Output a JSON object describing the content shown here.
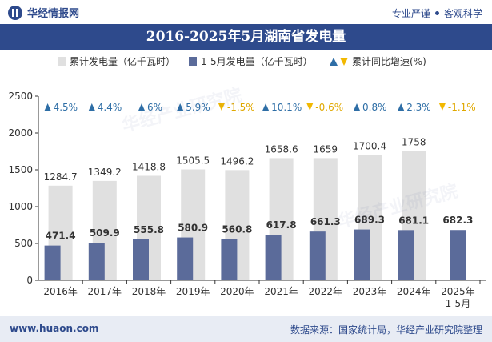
{
  "header": {
    "logo_text": "华经情报网",
    "tagline_1": "专业严谨",
    "tagline_2": "客观科学"
  },
  "title": "2016-2025年5月湖南省发电量",
  "legend": {
    "cumulative": "累计发电量（亿千瓦时）",
    "jan_may": "1-5月发电量（亿千瓦时）",
    "growth": "累计同比增速(%)"
  },
  "footer": {
    "website": "www.huaon.com",
    "source": "数据来源：国家统计局，华经产业研究院整理"
  },
  "watermark": "华经产业研究院",
  "colors": {
    "cumulative_bar": "#e0e0e0",
    "jan_may_bar": "#5b6b9a",
    "growth_up": "#2e6ea6",
    "growth_down": "#f2b800",
    "brand": "#2e4a8c"
  },
  "chart_data": {
    "type": "bar",
    "categories": [
      "2016年",
      "2017年",
      "2018年",
      "2019年",
      "2020年",
      "2021年",
      "2022年",
      "2023年",
      "2024年",
      "2025年\n1-5月"
    ],
    "series": [
      {
        "name": "累计发电量（亿千瓦时）",
        "values": [
          1284.7,
          1349.2,
          1418.8,
          1505.5,
          1496.2,
          1658.6,
          1659,
          1700.4,
          1758,
          null
        ]
      },
      {
        "name": "1-5月发电量（亿千瓦时）",
        "values": [
          471.4,
          509.9,
          555.8,
          580.9,
          560.8,
          617.8,
          661.3,
          689.3,
          681.1,
          682.3
        ]
      },
      {
        "name": "累计同比增速(%)",
        "values": [
          4.5,
          4.4,
          6,
          5.9,
          -1.5,
          10.1,
          -0.6,
          0.8,
          2.3,
          -1.1
        ]
      }
    ],
    "growth_labels": [
      "4.5%",
      "4.4%",
      "6%",
      "5.9%",
      "-1.5%",
      "10.1%",
      "-0.6%",
      "0.8%",
      "2.3%",
      "-1.1%"
    ],
    "yticks": [
      0,
      500,
      1000,
      1500,
      2000,
      2500
    ],
    "ylim": [
      0,
      2500
    ],
    "grid": false,
    "legend_position": "top"
  }
}
